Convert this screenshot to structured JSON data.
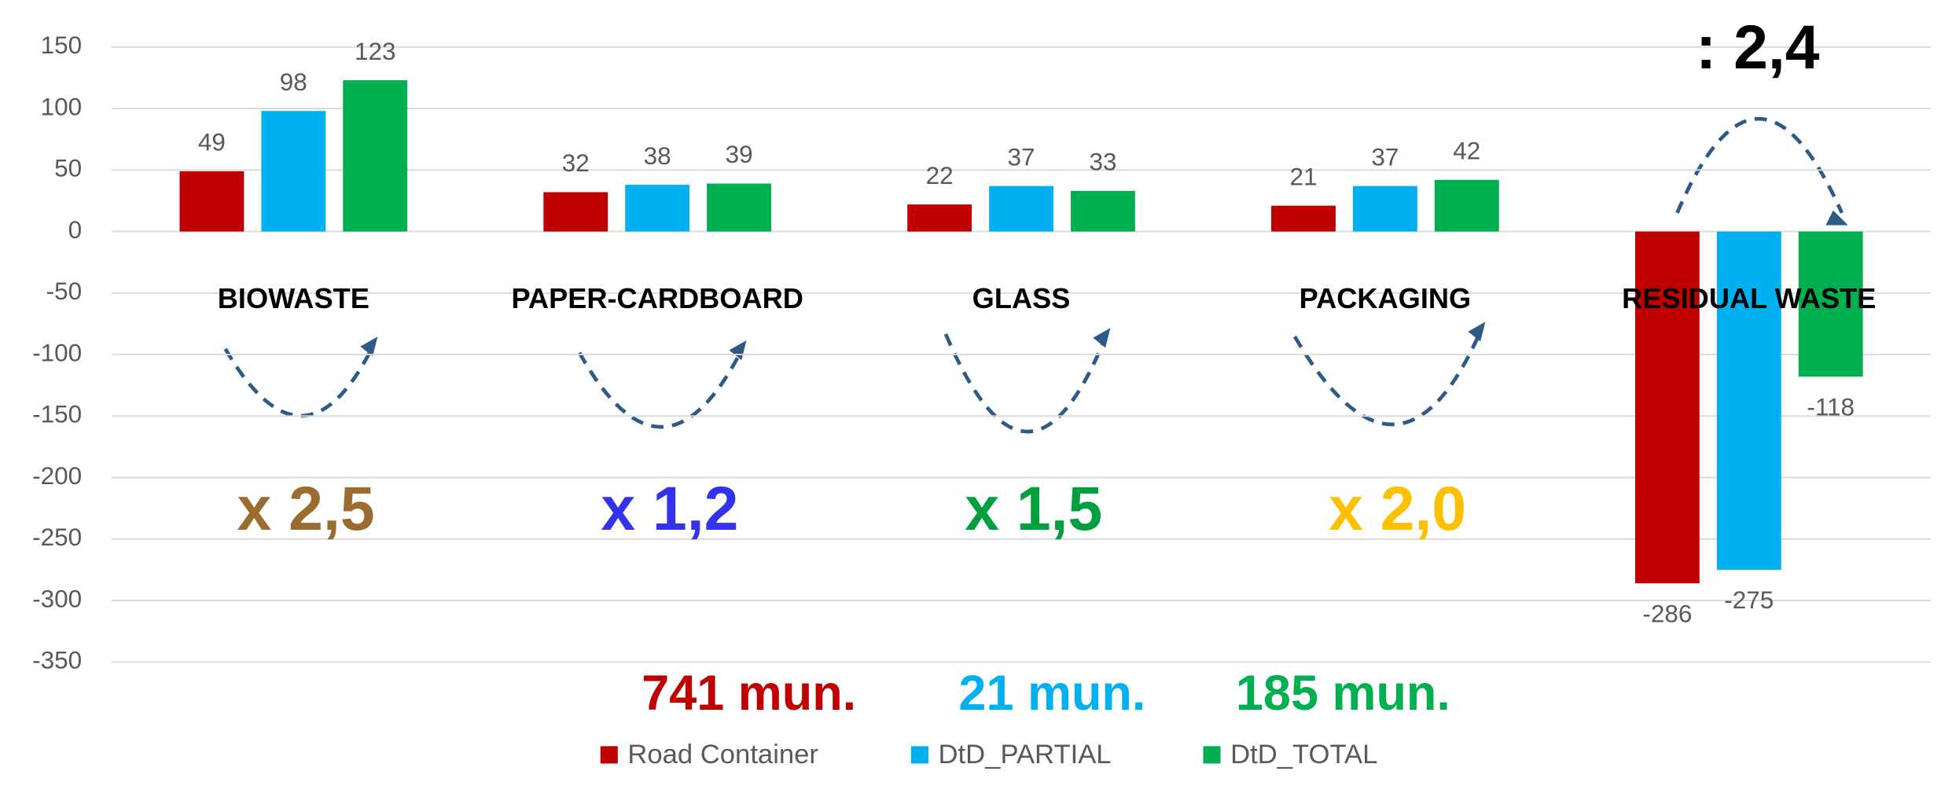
{
  "chart_data": {
    "type": "bar",
    "categories": [
      "BIOWASTE",
      "PAPER-CARDBOARD",
      "GLASS",
      "PACKAGING",
      "RESIDUAL WASTE"
    ],
    "series": [
      {
        "name": "Road Container",
        "color": "#c00000",
        "values": [
          49,
          32,
          22,
          21,
          -286
        ]
      },
      {
        "name": "DtD_PARTIAL",
        "color": "#00b0f0",
        "values": [
          98,
          38,
          37,
          37,
          -275
        ]
      },
      {
        "name": "DtD_TOTAL",
        "color": "#00b050",
        "values": [
          123,
          39,
          33,
          42,
          -118
        ]
      }
    ],
    "ylim": [
      -350,
      150
    ],
    "yticks": [
      -350,
      -300,
      -250,
      -200,
      -150,
      -100,
      -50,
      0,
      50,
      100,
      150
    ],
    "grid": true,
    "ratios": [
      {
        "text": "x 2,5",
        "color": "#9c6b30"
      },
      {
        "text": "x 1,2",
        "color": "#3333ee"
      },
      {
        "text": "x 1,5",
        "color": "#00a040"
      },
      {
        "text": "x 2,0",
        "color": "#ffc000"
      },
      {
        "text": ": 2,4",
        "color": "#000000"
      }
    ],
    "municipalities": [
      "741 mun.",
      "21 mun.",
      "185 mun."
    ],
    "legend": "bottom"
  }
}
